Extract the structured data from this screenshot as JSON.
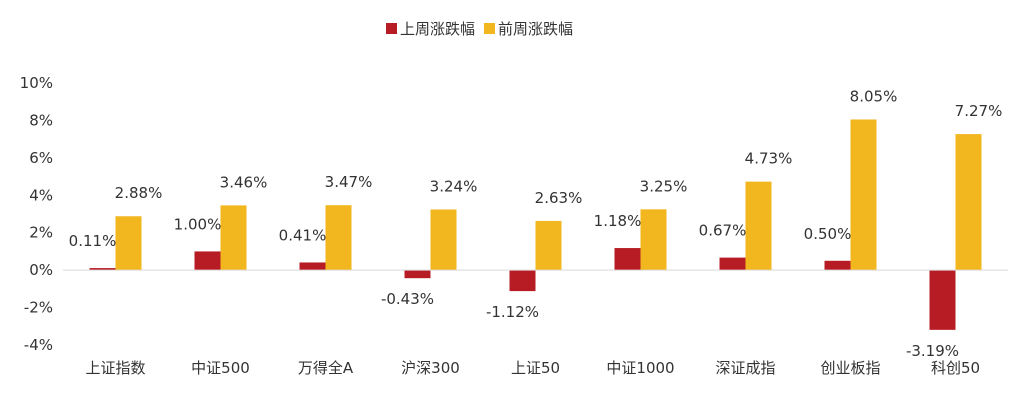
{
  "chart_data": {
    "type": "bar",
    "categories": [
      "上证指数",
      "中证500",
      "万得全A",
      "沪深300",
      "上证50",
      "中证1000",
      "深证成指",
      "创业板指",
      "科创50"
    ],
    "series": [
      {
        "name": "上周涨跌幅",
        "color": "#B71C24",
        "values": [
          0.11,
          1.0,
          0.41,
          -0.43,
          -1.12,
          1.18,
          0.67,
          0.5,
          -3.19
        ],
        "labels": [
          "0.11%",
          "1.00%",
          "0.41%",
          "-0.43%",
          "-1.12%",
          "1.18%",
          "0.67%",
          "0.50%",
          "-3.19%"
        ]
      },
      {
        "name": "前周涨跌幅",
        "color": "#F2B61F",
        "values": [
          2.88,
          3.46,
          3.47,
          3.24,
          2.63,
          3.25,
          4.73,
          8.05,
          7.27
        ],
        "labels": [
          "2.88%",
          "3.46%",
          "3.47%",
          "3.24%",
          "2.63%",
          "3.25%",
          "4.73%",
          "8.05%",
          "7.27%"
        ]
      }
    ],
    "ylim": [
      -4,
      10
    ],
    "yticks": [
      10,
      8,
      6,
      4,
      2,
      0,
      -2,
      -4
    ],
    "ytick_labels": [
      "10%",
      "8%",
      "6%",
      "4%",
      "2%",
      "0%",
      "-2%",
      "-4%"
    ],
    "legend_position": "top-center",
    "grid": false
  }
}
